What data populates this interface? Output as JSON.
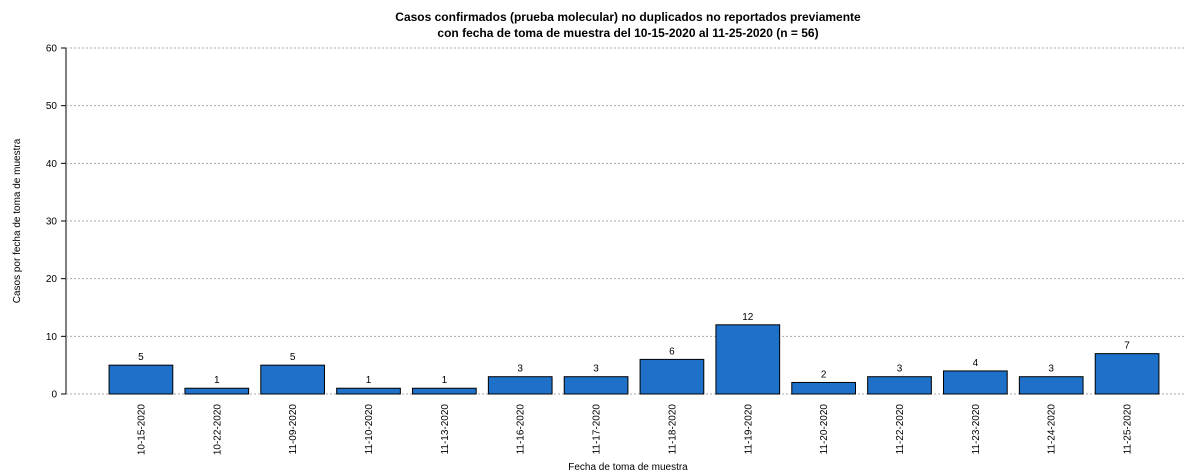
{
  "chart_data": {
    "type": "bar",
    "title": [
      "Casos confirmados (prueba molecular) no duplicados no reportados previamente",
      "con fecha de toma de muestra del 10-15-2020 al 11-25-2020 (n = 56)"
    ],
    "x_label": "Fecha de toma de muestra",
    "y_label": "Casos por fecha de toma de muestra",
    "categories": [
      "10-15-2020",
      "10-22-2020",
      "11-09-2020",
      "11-10-2020",
      "11-13-2020",
      "11-16-2020",
      "11-17-2020",
      "11-18-2020",
      "11-19-2020",
      "11-20-2020",
      "11-22-2020",
      "11-23-2020",
      "11-24-2020",
      "11-25-2020"
    ],
    "values": [
      5,
      1,
      5,
      1,
      1,
      3,
      3,
      6,
      12,
      2,
      3,
      4,
      3,
      7
    ],
    "color": "#1f70c8",
    "ylim": [
      0,
      60
    ],
    "yticks": [
      0,
      10,
      20,
      30,
      40,
      50,
      60
    ],
    "grid": true
  }
}
